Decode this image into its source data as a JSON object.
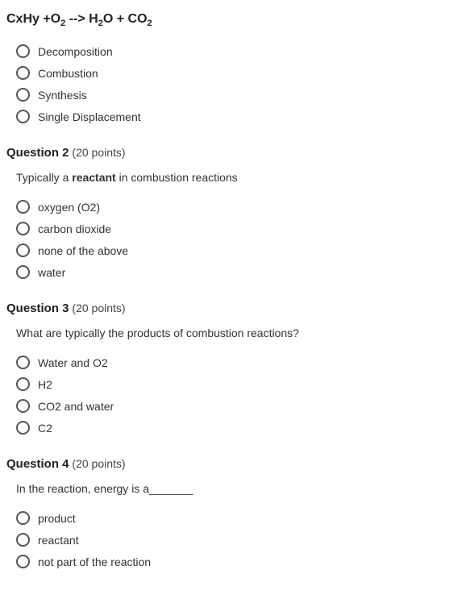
{
  "equation": {
    "html": "CxHy +O<sub>2</sub> --> H<sub>2</sub>O + CO<sub>2</sub>"
  },
  "q1": {
    "options": [
      "Decomposition",
      "Combustion",
      "Synthesis",
      "Single Displacement"
    ]
  },
  "q2": {
    "title": "Question 2",
    "points": "(20 points)",
    "text_html": "Typically a <b>reactant</b> in combustion reactions",
    "options": [
      "oxygen (O2)",
      "carbon dioxide",
      "none of the above",
      "water"
    ]
  },
  "q3": {
    "title": "Question 3",
    "points": "(20 points)",
    "text": "What are typically the products of combustion reactions?",
    "options": [
      "Water and O2",
      "H2",
      "CO2 and water",
      "C2"
    ]
  },
  "q4": {
    "title": "Question 4",
    "points": "(20 points)",
    "text": "In the reaction, energy is a_______",
    "options": [
      "product",
      "reactant",
      "not part of the reaction"
    ]
  },
  "colors": {
    "text": "#333333",
    "radio_border": "#555555",
    "background": "#ffffff"
  }
}
